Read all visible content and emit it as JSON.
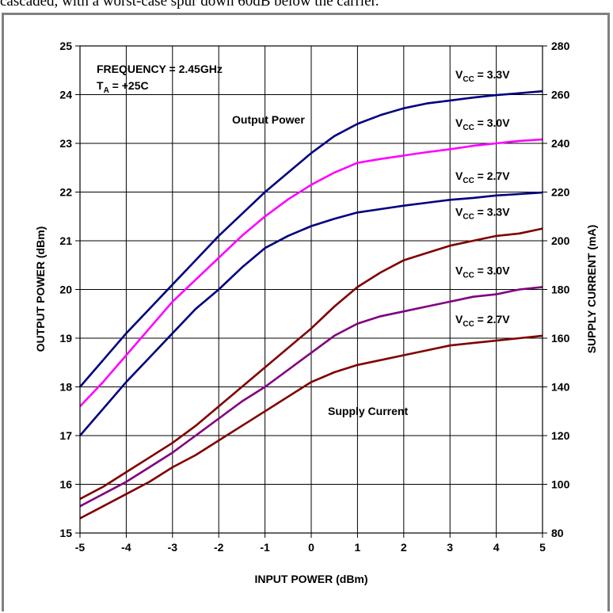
{
  "caption": "cascaded, with a worst-case spur down 60dB below the carrier.",
  "chart_data": {
    "type": "line",
    "xlabel": "INPUT POWER (dBm)",
    "ylabel_left": "OUTPUT POWER (dBm)",
    "ylabel_right": "SUPPLY CURRENT (mA)",
    "xlim": [
      -5,
      5
    ],
    "ylim_left": [
      15,
      25
    ],
    "ylim_right": [
      80,
      280
    ],
    "x_ticks": [
      "-5",
      "-4",
      "-3",
      "-2",
      "-1",
      "0",
      "1",
      "2",
      "3",
      "4",
      "5"
    ],
    "y_left_ticks": [
      "15",
      "16",
      "17",
      "18",
      "19",
      "20",
      "21",
      "22",
      "23",
      "24",
      "25"
    ],
    "y_right_ticks": [
      "80",
      "100",
      "120",
      "140",
      "160",
      "180",
      "200",
      "220",
      "240",
      "260",
      "280"
    ],
    "grid": true,
    "annotations": {
      "frequency": "FREQUENCY = 2.45GHz",
      "ta_main": "T",
      "ta_sub": "A",
      "ta_rest": " = +25C",
      "output_power": "Output Power",
      "supply_current": "Supply Current"
    },
    "x": [
      -5,
      -4.5,
      -4,
      -3.5,
      -3,
      -2.5,
      -2,
      -1.5,
      -1,
      -0.5,
      0,
      0.5,
      1,
      1.5,
      2,
      2.5,
      3,
      3.5,
      4,
      4.5,
      5
    ],
    "series": [
      {
        "group": "output",
        "label_main": "V",
        "label_sub": "CC",
        "label_rest": " = 3.3V",
        "color": "#000080",
        "axis": "left",
        "values": [
          18.0,
          18.55,
          19.1,
          19.6,
          20.1,
          20.6,
          21.1,
          21.55,
          22.0,
          22.4,
          22.8,
          23.15,
          23.4,
          23.58,
          23.72,
          23.82,
          23.88,
          23.94,
          23.99,
          24.03,
          24.07
        ]
      },
      {
        "group": "output",
        "label_main": "V",
        "label_sub": "CC",
        "label_rest": " = 3.0V",
        "color": "#ff00ff",
        "axis": "left",
        "values": [
          17.6,
          18.1,
          18.65,
          19.2,
          19.75,
          20.2,
          20.65,
          21.1,
          21.5,
          21.85,
          22.15,
          22.4,
          22.6,
          22.68,
          22.75,
          22.82,
          22.88,
          22.95,
          23.0,
          23.05,
          23.08
        ]
      },
      {
        "group": "output",
        "label_main": "V",
        "label_sub": "CC",
        "label_rest": " = 2.7V",
        "color": "#000080",
        "axis": "left",
        "values": [
          17.0,
          17.55,
          18.1,
          18.6,
          19.1,
          19.6,
          20.0,
          20.45,
          20.85,
          21.1,
          21.3,
          21.45,
          21.58,
          21.65,
          21.72,
          21.78,
          21.84,
          21.88,
          21.93,
          21.96,
          21.99
        ]
      },
      {
        "group": "current",
        "label_main": "V",
        "label_sub": "CC",
        "label_rest": " = 3.3V",
        "color": "#800000",
        "axis": "right",
        "values": [
          94,
          99,
          105,
          111,
          117,
          124,
          132,
          140,
          148,
          156,
          164,
          173,
          181,
          187,
          192,
          195,
          198,
          200,
          202,
          203,
          205
        ]
      },
      {
        "group": "current",
        "label_main": "V",
        "label_sub": "CC",
        "label_rest": " = 3.0V",
        "color": "#800080",
        "axis": "right",
        "values": [
          91,
          96,
          101,
          107,
          113,
          120,
          127,
          134,
          140,
          147,
          154,
          161,
          166,
          169,
          171,
          173,
          175,
          177,
          178,
          180,
          181
        ]
      },
      {
        "group": "current",
        "label_main": "V",
        "label_sub": "CC",
        "label_rest": " = 2.7V",
        "color": "#800000",
        "axis": "right",
        "values": [
          86,
          91,
          96,
          101,
          107,
          112,
          118,
          124,
          130,
          136,
          142,
          146,
          149,
          151,
          153,
          155,
          157,
          158,
          159,
          160,
          161
        ]
      }
    ]
  }
}
